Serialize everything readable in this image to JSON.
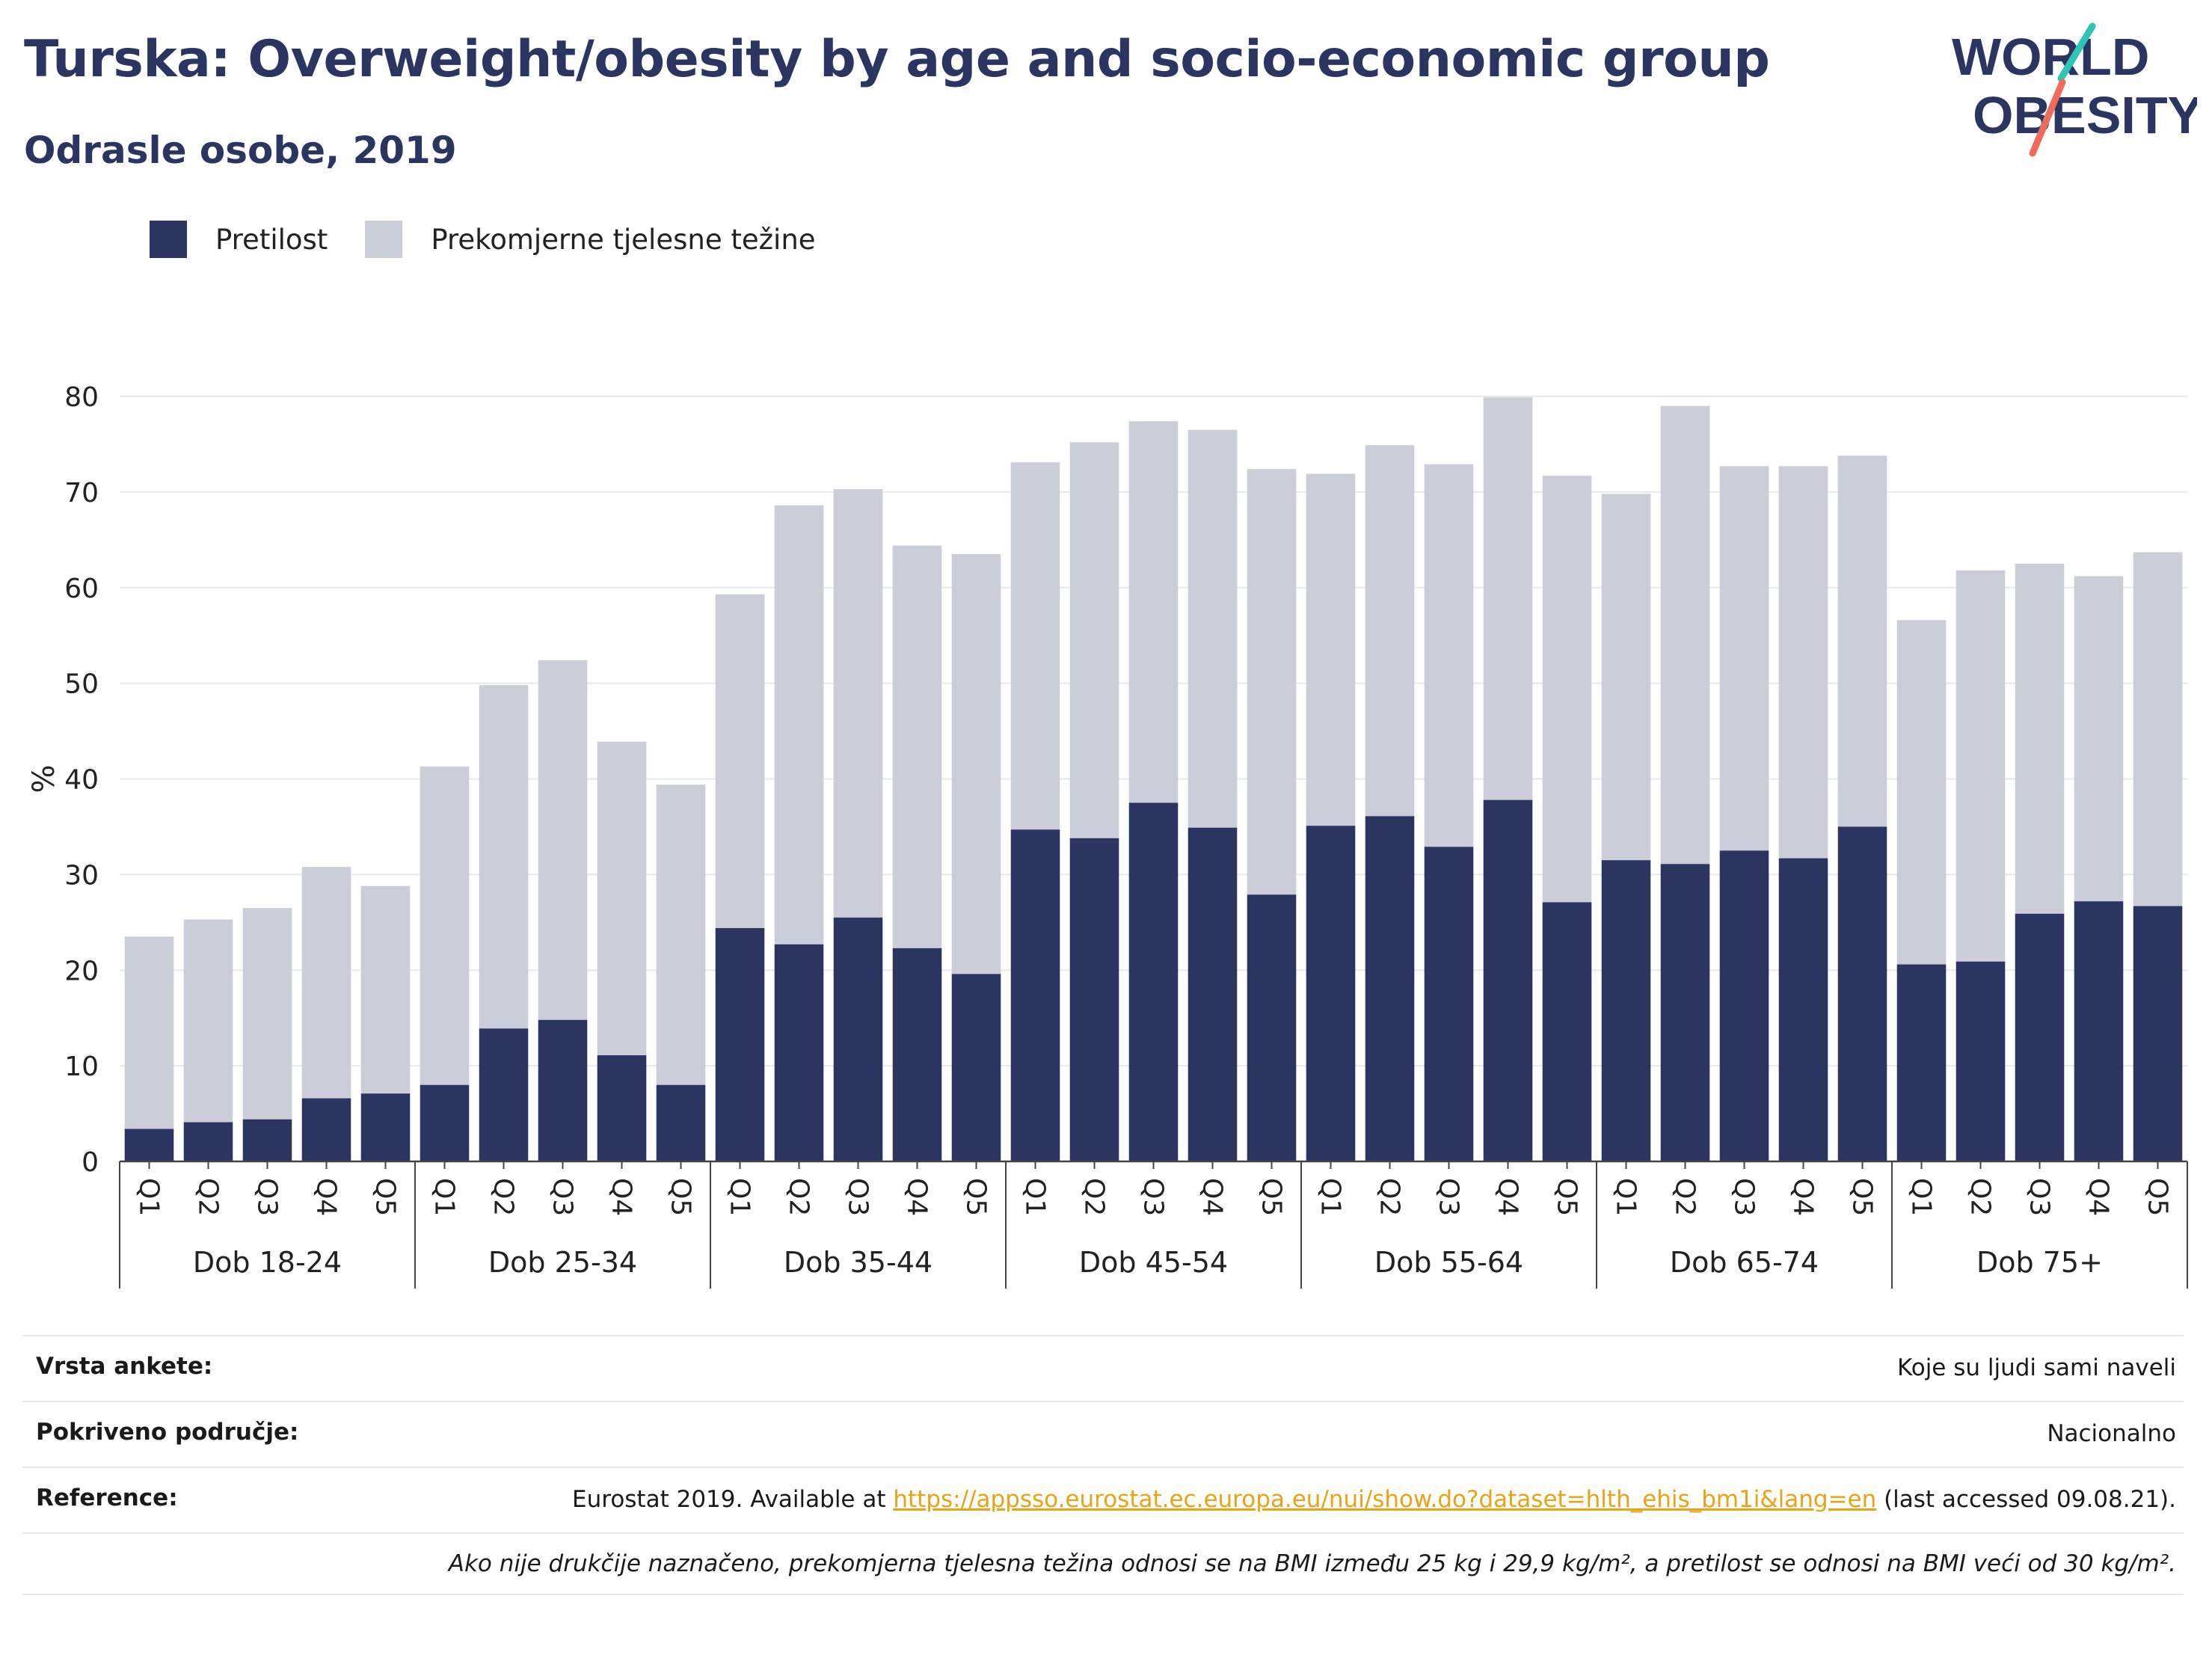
{
  "header": {
    "title": "Turska: Overweight/obesity by age and socio-economic group",
    "subtitle": "Odrasle osobe, 2019"
  },
  "logo": {
    "line1": "WORLD",
    "line2": "OBESITY"
  },
  "legend": [
    {
      "label": "Pretilost",
      "color": "#2b3562"
    },
    {
      "label": "Prekomjerne tjelesne težine",
      "color": "#cbcdd8"
    }
  ],
  "chart_data": {
    "type": "bar",
    "stacked": true,
    "ylabel": "%",
    "ylim": [
      0,
      80
    ],
    "yticks": [
      0,
      10,
      20,
      30,
      40,
      50,
      60,
      70,
      80
    ],
    "grid": true,
    "legend_position": "top-left",
    "groups": [
      "Dob 18-24",
      "Dob 25-34",
      "Dob 35-44",
      "Dob 45-54",
      "Dob 55-64",
      "Dob 65-74",
      "Dob 75+"
    ],
    "subcategories": [
      "Q1",
      "Q2",
      "Q3",
      "Q4",
      "Q5"
    ],
    "series": [
      {
        "name": "Pretilost",
        "color": "#2b3562",
        "values": [
          3.4,
          4.1,
          4.4,
          6.6,
          7.1,
          8.0,
          13.9,
          14.8,
          11.1,
          8.0,
          24.4,
          22.7,
          25.5,
          22.3,
          19.6,
          34.7,
          33.8,
          37.5,
          34.9,
          27.9,
          35.1,
          36.1,
          32.9,
          37.8,
          27.1,
          31.5,
          31.1,
          32.5,
          31.7,
          35.0,
          20.6,
          20.9,
          25.9,
          27.2,
          26.7
        ]
      },
      {
        "name": "Prekomjerne tjelesne težine",
        "color": "#cbcdd8",
        "values": [
          20.1,
          21.2,
          22.1,
          24.2,
          21.7,
          33.3,
          35.9,
          37.6,
          32.8,
          31.4,
          34.9,
          45.9,
          44.8,
          42.1,
          43.9,
          38.4,
          41.4,
          39.9,
          41.6,
          44.5,
          36.8,
          38.8,
          40.0,
          42.1,
          44.6,
          38.3,
          47.9,
          40.2,
          41.0,
          38.8,
          36.0,
          40.9,
          36.6,
          34.0,
          37.0
        ]
      }
    ]
  },
  "info": {
    "survey_type": {
      "label": "Vrsta ankete:",
      "value": "Koje su ljudi sami naveli"
    },
    "coverage": {
      "label": "Pokriveno područje:",
      "value": "Nacionalno"
    },
    "reference": {
      "label": "Reference:",
      "prefix": "Eurostat 2019. Available at ",
      "link": "https://appsso.eurostat.ec.europa.eu/nui/show.do?dataset=hlth_ehis_bm1i&lang=en",
      "suffix": " (last accessed 09.08.21)."
    },
    "note": "Ako nije drukčije naznačeno, prekomjerna tjelesna težina odnosi se na BMI između 25 kg i 29,9 kg/m², a pretilost se odnosi na BMI veći od 30 kg/m²."
  }
}
